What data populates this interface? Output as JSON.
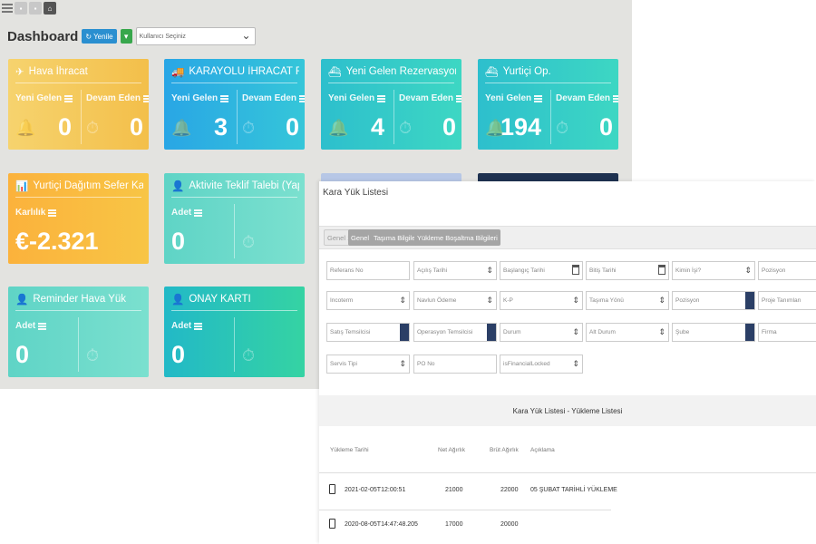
{
  "dashboard": {
    "title": "Dashboard",
    "refresh_label": "Yenile",
    "user_select_placeholder": "Kullanıcı Seçiniz",
    "cards": [
      {
        "title": "Hava İhracat",
        "left_label": "Yeni Gelen",
        "right_label": "Devam Eden",
        "left_value": "0",
        "right_value": "0",
        "color": "#f4c553",
        "icon": "plane-icon"
      },
      {
        "title": "KARAYOLU İHRACAT RE...",
        "left_label": "Yeni Gelen",
        "right_label": "Devam Eden",
        "left_value": "3",
        "right_value": "0",
        "color": "#2fb6df",
        "icon": "truck-icon"
      },
      {
        "title": "Yeni Gelen Rezervasyonlar",
        "left_label": "Yeni Gelen",
        "right_label": "Devam Eden",
        "left_value": "4",
        "right_value": "0",
        "color": "#35ccc9",
        "icon": "ship-icon"
      },
      {
        "title": "Yurtiçi Op.",
        "left_label": "Yeni Gelen",
        "right_label": "Devam Eden",
        "left_value": "194",
        "right_value": "0",
        "color": "#33c5cf",
        "icon": "ship-icon"
      },
      {
        "title": "Yurtiçi Dağıtım Sefer Kar",
        "left_label": "Karlılık",
        "left_value": "€-2.321",
        "color": "#f9b941",
        "icon": "chart-icon"
      },
      {
        "title": "Aktivite Teklif Talebi (Yapıl...",
        "left_label": "Adet",
        "left_value": "0",
        "color": "#6cdacb",
        "icon": "user-icon"
      },
      {
        "title": "Reminder Hava Yük",
        "left_label": "Adet",
        "left_value": "0",
        "color": "#6cdacb",
        "icon": "user-icon"
      },
      {
        "title": "ONAY KARTI",
        "left_label": "Adet",
        "left_value": "0",
        "color": "#2ec6b6",
        "icon": "user-icon"
      }
    ]
  },
  "kara": {
    "title": "Kara Yük Listesi",
    "tabs": [
      "Genel 1",
      "Genel 2",
      "Taşıma Bilgileri",
      "Yükleme Boşaltma Bilgileri"
    ],
    "fields": {
      "referans_no": "Referans No",
      "acilis_tarihi": "Açılış Tarihi",
      "baslangic_tarihi": "Başlangıç Tarihi",
      "bitis_tarihi": "Bitiş Tarihi",
      "kimin_isi": "Kimin İşi?",
      "pozisyon": "Pozisyon",
      "incoterm": "Incoterm",
      "navlun_odeme": "Navlun Ödeme",
      "kp": "K-P",
      "tasima_yonu": "Taşıma Yönü",
      "pozisyon2": "Pozisyon",
      "proje_tanimlari": "Proje Tanımları",
      "satis_temsilcisi": "Satış Temsilcisi",
      "operasyon_temsilcisi": "Operasyon Temsilcisi",
      "durum": "Durum",
      "alt_durum": "Alt Durum",
      "sube": "Şube",
      "firma": "Firma",
      "servis_tipi": "Servis Tipi",
      "po_no": "PO No",
      "is_financial_locked": "isFinancialLocked"
    },
    "subtitle": "Kara Yük Listesi - Yükleme Listesi",
    "columns": [
      "Yükleme Tarihi",
      "Net Ağırlık",
      "Brüt Ağırlık",
      "Açıklama"
    ],
    "rows": [
      {
        "date": "2021-02-05T12:00:51",
        "net": "21000",
        "gross": "22000",
        "desc": "05 ŞUBAT TARİHLİ YÜKLEME"
      },
      {
        "date": "2020-08-05T14:47:48.205",
        "net": "17000",
        "gross": "20000",
        "desc": ""
      }
    ]
  }
}
